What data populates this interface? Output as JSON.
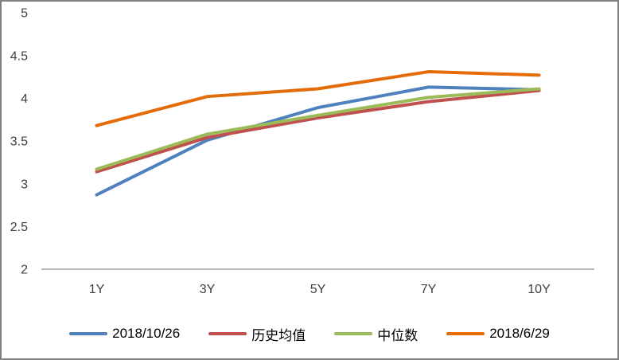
{
  "chart_data": {
    "type": "line",
    "title": "",
    "xlabel": "",
    "ylabel": "",
    "categories": [
      "1Y",
      "3Y",
      "5Y",
      "7Y",
      "10Y"
    ],
    "series": [
      {
        "name": "2018/10/26",
        "color": "#4F81BD",
        "values": [
          2.87,
          3.51,
          3.89,
          4.13,
          4.1
        ]
      },
      {
        "name": "历史均值",
        "color": "#C0504D",
        "values": [
          3.14,
          3.54,
          3.77,
          3.96,
          4.09
        ]
      },
      {
        "name": "中位数",
        "color": "#9BBB59",
        "values": [
          3.17,
          3.58,
          3.8,
          4.01,
          4.11
        ]
      },
      {
        "name": "2018/6/29",
        "color": "#E36C09",
        "values": [
          3.68,
          4.02,
          4.11,
          4.31,
          4.27
        ]
      }
    ],
    "ylim": [
      2,
      5
    ],
    "ytick_step": 0.5,
    "ytick_labels": [
      "2",
      "2.5",
      "3",
      "3.5",
      "4",
      "4.5",
      "5"
    ],
    "grid": false,
    "legend_position": "bottom",
    "line_width": 4,
    "axis_line_color": "#8C8C8C",
    "text_color": "#404040",
    "frame_border_color": "#808080"
  }
}
